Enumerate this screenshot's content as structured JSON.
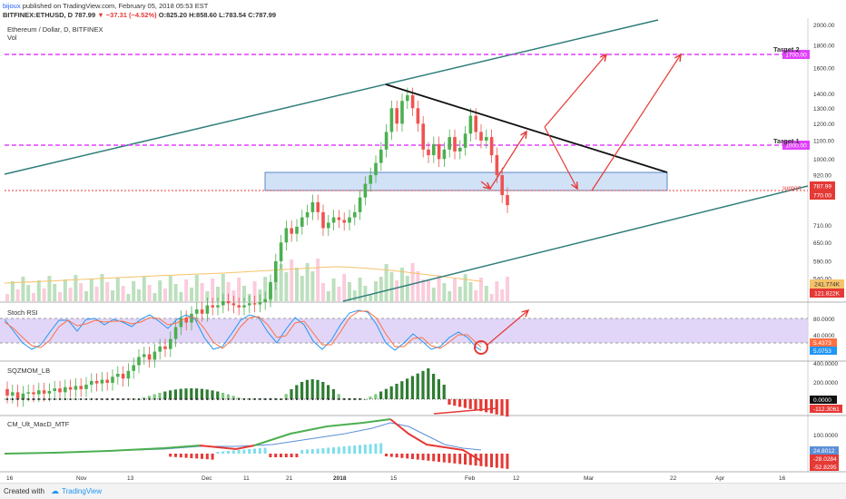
{
  "publish": {
    "author": "bijoux",
    "text": "published on TradingView.com, February 05, 2018 05:53 EST"
  },
  "quote": {
    "symbol": "BITFINEX:ETHUSD, D",
    "last": "787.99",
    "change": "−37.31 (−4.52%)",
    "open": "O:825.20",
    "high": "H:858.60",
    "low": "L:783.54",
    "close": "C:787.99",
    "down_color": "#e53935",
    "up_color": "#26a69a"
  },
  "legend": {
    "title": "Ethereum / Dollar, D, BITFINEX",
    "vol": "Vol"
  },
  "price_axis": [
    "2000.00",
    "1800.00",
    "1600.00",
    "1400.00",
    "1300.00",
    "1200.00",
    "1100.00",
    "1000.00",
    "920.00",
    "845.00",
    "710.00",
    "650.00",
    "590.00",
    "540.00",
    "500.00"
  ],
  "price_scale": {
    "min": 480,
    "max": 2050
  },
  "price_tags": {
    "target2": "1700.00",
    "target1": "1000.00",
    "last": "787.99",
    "support": "770.00",
    "vol_ma": "241.774K",
    "vol": "121.822K"
  },
  "annotations": {
    "target2": "Target 2",
    "target1": "Target 1",
    "support": "support"
  },
  "indicators": {
    "stoch": {
      "name": "Stoch RSI",
      "axis": [
        "80.0000",
        "40.0000"
      ],
      "tags": [
        "5.4373",
        "5.0753"
      ]
    },
    "sqz": {
      "name": "SQZMOM_LB",
      "axis": [
        "400.0000",
        "200.0000"
      ],
      "tags": [
        "0.0000",
        "-112.3061"
      ]
    },
    "macd": {
      "name": "CM_Ult_MacD_MTF",
      "axis": [
        "100.0000"
      ],
      "tags": [
        "24.8012",
        "-28.0284",
        "-52.8295"
      ]
    }
  },
  "time_axis": [
    "16",
    "Nov",
    "13",
    "Dec",
    "11",
    "21",
    "2018",
    "15",
    "Feb",
    "12",
    "Mar",
    "22",
    "Apr",
    "16"
  ],
  "footer": {
    "created_with": "Created with",
    "brand": "TradingView"
  },
  "colors": {
    "bull": "#4caf50",
    "bear": "#ef5350",
    "channel": "#2e7d7a",
    "target": "#e040fb",
    "arrow": "#e53935",
    "zone": "#b3cdf0",
    "stoch_band": "#dccff7",
    "tag_red": "#e53935",
    "tag_purple": "#e040fb"
  },
  "chart_data": {
    "type": "candlestick",
    "title": "Ethereum / Dollar, D, BITFINEX",
    "candles": [
      {
        "o": 305,
        "c": 295
      },
      {
        "o": 295,
        "c": 300
      },
      {
        "o": 300,
        "c": 290
      },
      {
        "o": 290,
        "c": 298
      },
      {
        "o": 298,
        "c": 300
      },
      {
        "o": 300,
        "c": 297
      },
      {
        "o": 297,
        "c": 303
      },
      {
        "o": 303,
        "c": 298
      },
      {
        "o": 298,
        "c": 302
      },
      {
        "o": 302,
        "c": 306
      },
      {
        "o": 306,
        "c": 300
      },
      {
        "o": 300,
        "c": 308
      },
      {
        "o": 308,
        "c": 304
      },
      {
        "o": 304,
        "c": 310
      },
      {
        "o": 310,
        "c": 305
      },
      {
        "o": 305,
        "c": 312
      },
      {
        "o": 312,
        "c": 318
      },
      {
        "o": 318,
        "c": 314
      },
      {
        "o": 314,
        "c": 320
      },
      {
        "o": 320,
        "c": 315
      },
      {
        "o": 315,
        "c": 325
      },
      {
        "o": 325,
        "c": 330
      },
      {
        "o": 330,
        "c": 322
      },
      {
        "o": 322,
        "c": 335
      },
      {
        "o": 335,
        "c": 345
      },
      {
        "o": 345,
        "c": 360
      },
      {
        "o": 360,
        "c": 365
      },
      {
        "o": 365,
        "c": 355
      },
      {
        "o": 355,
        "c": 370
      },
      {
        "o": 370,
        "c": 380
      },
      {
        "o": 380,
        "c": 375
      },
      {
        "o": 375,
        "c": 395
      },
      {
        "o": 395,
        "c": 420
      },
      {
        "o": 420,
        "c": 440
      },
      {
        "o": 440,
        "c": 430
      },
      {
        "o": 430,
        "c": 450
      },
      {
        "o": 450,
        "c": 460
      },
      {
        "o": 460,
        "c": 450
      },
      {
        "o": 450,
        "c": 470
      },
      {
        "o": 470,
        "c": 465
      },
      {
        "o": 465,
        "c": 470
      },
      {
        "o": 470,
        "c": 480
      },
      {
        "o": 480,
        "c": 475
      },
      {
        "o": 475,
        "c": 470
      },
      {
        "o": 470,
        "c": 465
      },
      {
        "o": 465,
        "c": 470
      },
      {
        "o": 470,
        "c": 475
      },
      {
        "o": 475,
        "c": 472
      },
      {
        "o": 472,
        "c": 478
      },
      {
        "o": 478,
        "c": 485
      },
      {
        "o": 485,
        "c": 530
      },
      {
        "o": 530,
        "c": 590
      },
      {
        "o": 590,
        "c": 650
      },
      {
        "o": 650,
        "c": 700
      },
      {
        "o": 700,
        "c": 680
      },
      {
        "o": 680,
        "c": 705
      },
      {
        "o": 705,
        "c": 740
      },
      {
        "o": 740,
        "c": 760
      },
      {
        "o": 760,
        "c": 800
      },
      {
        "o": 800,
        "c": 760
      },
      {
        "o": 760,
        "c": 700
      },
      {
        "o": 700,
        "c": 720
      },
      {
        "o": 720,
        "c": 740
      },
      {
        "o": 740,
        "c": 730
      },
      {
        "o": 730,
        "c": 720
      },
      {
        "o": 720,
        "c": 740
      },
      {
        "o": 740,
        "c": 760
      },
      {
        "o": 760,
        "c": 820
      },
      {
        "o": 820,
        "c": 880
      },
      {
        "o": 880,
        "c": 920
      },
      {
        "o": 920,
        "c": 980
      },
      {
        "o": 980,
        "c": 1050
      },
      {
        "o": 1050,
        "c": 1150
      },
      {
        "o": 1150,
        "c": 1300
      },
      {
        "o": 1300,
        "c": 1200
      },
      {
        "o": 1200,
        "c": 1350
      },
      {
        "o": 1350,
        "c": 1390
      },
      {
        "o": 1390,
        "c": 1300
      },
      {
        "o": 1300,
        "c": 1200
      },
      {
        "o": 1200,
        "c": 1050
      },
      {
        "o": 1050,
        "c": 1020
      },
      {
        "o": 1020,
        "c": 1080
      },
      {
        "o": 1080,
        "c": 1000
      },
      {
        "o": 1000,
        "c": 1050
      },
      {
        "o": 1050,
        "c": 1120
      },
      {
        "o": 1120,
        "c": 1040
      },
      {
        "o": 1040,
        "c": 1060
      },
      {
        "o": 1060,
        "c": 1140
      },
      {
        "o": 1140,
        "c": 1250
      },
      {
        "o": 1250,
        "c": 1150
      },
      {
        "o": 1150,
        "c": 1100
      },
      {
        "o": 1100,
        "c": 1120
      },
      {
        "o": 1120,
        "c": 1020
      },
      {
        "o": 1020,
        "c": 920
      },
      {
        "o": 920,
        "c": 830
      },
      {
        "o": 830,
        "c": 788
      }
    ]
  }
}
